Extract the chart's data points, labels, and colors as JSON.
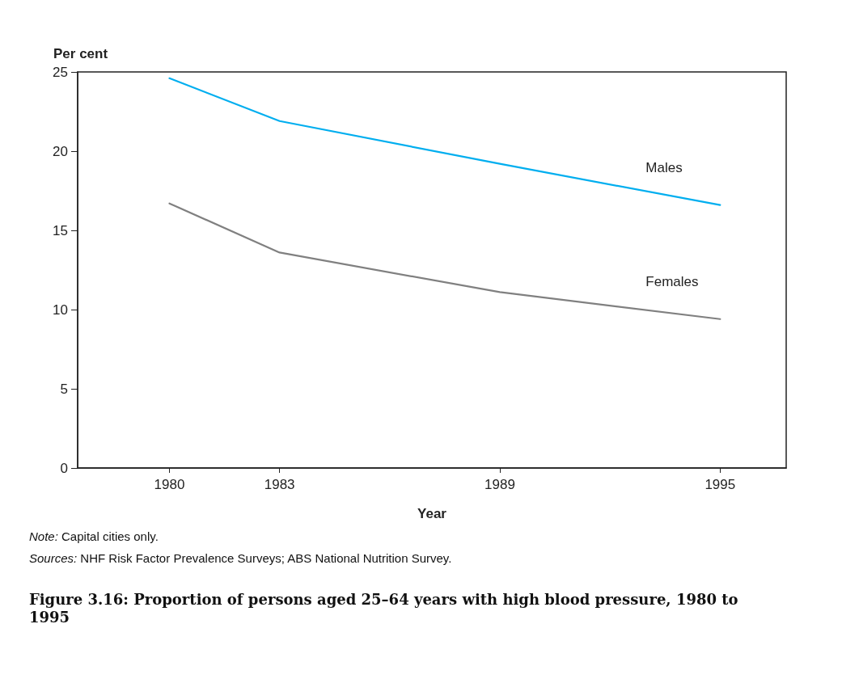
{
  "chart_data": {
    "type": "line",
    "title": "Figure 3.16: Proportion of persons aged 25–64 years with high blood pressure, 1980 to 1995",
    "xlabel": "Year",
    "ylabel": "Per cent",
    "x": [
      1980,
      1983,
      1989,
      1995
    ],
    "series": [
      {
        "name": "Males",
        "color": "#00aeef",
        "values": [
          24.6,
          21.9,
          19.2,
          16.6
        ]
      },
      {
        "name": "Females",
        "color": "#808080",
        "values": [
          16.7,
          13.6,
          11.1,
          9.4
        ]
      }
    ],
    "xlim": [
      1977.5,
      1996.8
    ],
    "xticks": [
      1980,
      1983,
      1989,
      1995
    ],
    "ylim": [
      0,
      25
    ],
    "yticks": [
      0,
      5,
      10,
      15,
      20,
      25
    ],
    "grid": false,
    "legend": false,
    "marker": "none",
    "line_style": "solid",
    "annotations": [
      "Note: Capital cities only.",
      "Sources: NHF Risk Factor Prevalence Surveys; ABS National Nutrition Survey."
    ]
  }
}
